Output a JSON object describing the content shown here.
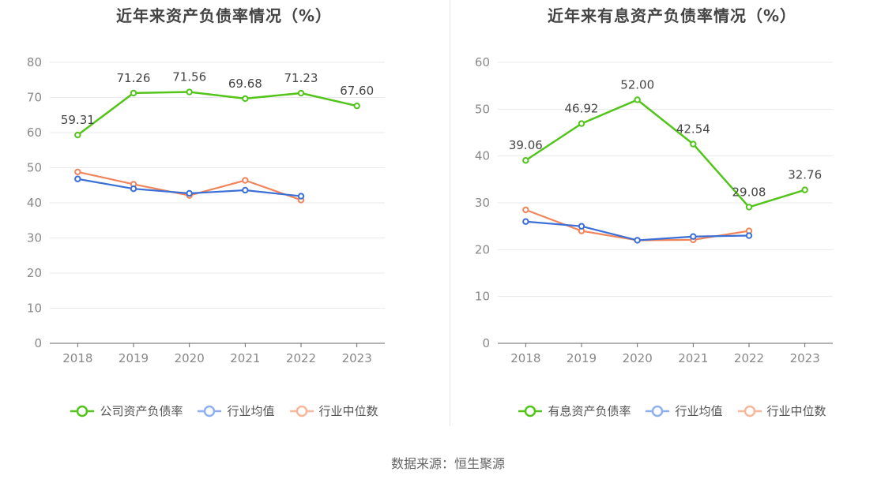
{
  "chart_data": [
    {
      "type": "line",
      "title": "近年来资产负债率情况（%）",
      "categories": [
        "2018",
        "2019",
        "2020",
        "2021",
        "2022",
        "2023"
      ],
      "ylim": [
        0,
        80
      ],
      "yticks": [
        0,
        10,
        20,
        30,
        40,
        50,
        60,
        70,
        80
      ],
      "grid": true,
      "legend_position": "bottom",
      "series": [
        {
          "name": "公司资产负债率",
          "color": "#52c41a",
          "values": [
            59.31,
            71.26,
            71.56,
            69.68,
            71.23,
            67.6
          ],
          "labels": [
            "59.31",
            "71.26",
            "71.56",
            "69.68",
            "71.23",
            "67.60"
          ]
        },
        {
          "name": "行业均值",
          "color": "#3a6fd8",
          "values": [
            46.8,
            44.0,
            42.7,
            43.6,
            41.9,
            null
          ]
        },
        {
          "name": "行业中位数",
          "color": "#f0845a",
          "values": [
            48.8,
            45.3,
            42.1,
            46.4,
            40.8,
            null
          ]
        }
      ]
    },
    {
      "type": "line",
      "title": "近年来有息资产负债率情况（%）",
      "categories": [
        "2018",
        "2019",
        "2020",
        "2021",
        "2022",
        "2023"
      ],
      "ylim": [
        0,
        60
      ],
      "yticks": [
        0,
        10,
        20,
        30,
        40,
        50,
        60
      ],
      "grid": true,
      "legend_position": "bottom",
      "series": [
        {
          "name": "有息资产负债率",
          "color": "#52c41a",
          "values": [
            39.06,
            46.92,
            52.0,
            42.54,
            29.08,
            32.76
          ],
          "labels": [
            "39.06",
            "46.92",
            "52.00",
            "42.54",
            "29.08",
            "32.76"
          ]
        },
        {
          "name": "行业均值",
          "color": "#3a6fd8",
          "values": [
            26.0,
            25.0,
            22.0,
            22.8,
            23.0,
            null
          ]
        },
        {
          "name": "行业中位数",
          "color": "#f0845a",
          "values": [
            28.5,
            24.0,
            22.0,
            22.1,
            24.0,
            null
          ]
        }
      ]
    }
  ],
  "source_text": "数据来源：恒生聚源"
}
